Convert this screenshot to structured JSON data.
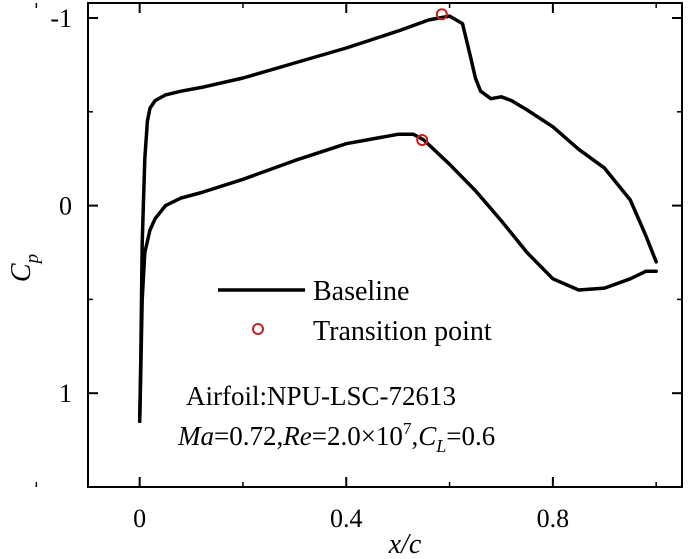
{
  "chart_data": {
    "type": "line",
    "xlabel": "x/c",
    "ylabel": "C_p",
    "xlim": [
      -0.1,
      1.05
    ],
    "ylim": [
      1.5,
      -1.08
    ],
    "y_inverted": true,
    "grid": false,
    "legend_placement": "center",
    "xticks": [
      {
        "value": 0,
        "label": "0"
      },
      {
        "value": 0.4,
        "label": "0.4"
      },
      {
        "value": 0.8,
        "label": "0.8"
      }
    ],
    "yticks": [
      {
        "value": -1,
        "label": "-1"
      },
      {
        "value": 0,
        "label": "0"
      },
      {
        "value": 1,
        "label": "1"
      }
    ],
    "series": [
      {
        "name": "Baseline",
        "color": "#000000",
        "upper_surface": {
          "x": [
            0.0,
            0.002,
            0.005,
            0.01,
            0.015,
            0.02,
            0.03,
            0.05,
            0.08,
            0.12,
            0.2,
            0.3,
            0.4,
            0.5,
            0.56,
            0.6,
            0.625,
            0.64,
            0.65,
            0.66,
            0.68,
            0.7,
            0.72,
            0.75,
            0.8,
            0.85,
            0.9,
            0.95,
            0.98,
            1.0
          ],
          "y": [
            1.15,
            0.85,
            0.2,
            -0.25,
            -0.45,
            -0.52,
            -0.56,
            -0.59,
            -0.61,
            -0.63,
            -0.68,
            -0.76,
            -0.84,
            -0.93,
            -0.99,
            -1.01,
            -0.97,
            -0.8,
            -0.68,
            -0.61,
            -0.57,
            -0.58,
            -0.56,
            -0.51,
            -0.42,
            -0.3,
            -0.2,
            -0.03,
            0.16,
            0.3
          ]
        },
        "lower_surface": {
          "x": [
            0.0,
            0.002,
            0.005,
            0.01,
            0.02,
            0.03,
            0.05,
            0.08,
            0.12,
            0.2,
            0.3,
            0.4,
            0.5,
            0.53,
            0.55,
            0.6,
            0.65,
            0.7,
            0.75,
            0.8,
            0.85,
            0.9,
            0.95,
            0.98,
            1.0
          ],
          "y": [
            1.15,
            0.9,
            0.5,
            0.25,
            0.13,
            0.07,
            0.0,
            -0.04,
            -0.07,
            -0.14,
            -0.24,
            -0.33,
            -0.38,
            -0.38,
            -0.35,
            -0.22,
            -0.08,
            0.08,
            0.25,
            0.39,
            0.45,
            0.44,
            0.39,
            0.35,
            0.35
          ]
        }
      },
      {
        "name": "Transition point",
        "color": "#c8201c",
        "marker": "circle-open",
        "points": [
          {
            "x": 0.585,
            "y": -1.02
          },
          {
            "x": 0.547,
            "y": -0.35
          }
        ]
      }
    ],
    "legend": [
      {
        "label": "Baseline",
        "style": "line"
      },
      {
        "label": "Transition point",
        "style": "marker"
      }
    ],
    "annotations": {
      "airfoil": "Airfoil:NPU-LSC-72613",
      "conditions": {
        "ma_symbol": "Ma",
        "ma_value": "=0.72,",
        "re_symbol": "Re",
        "re_value": "=2.0×10",
        "re_exponent": "7",
        "comma": ",",
        "cl_symbol": "C",
        "cl_sub": "L",
        "cl_value": "=0.6"
      }
    }
  }
}
